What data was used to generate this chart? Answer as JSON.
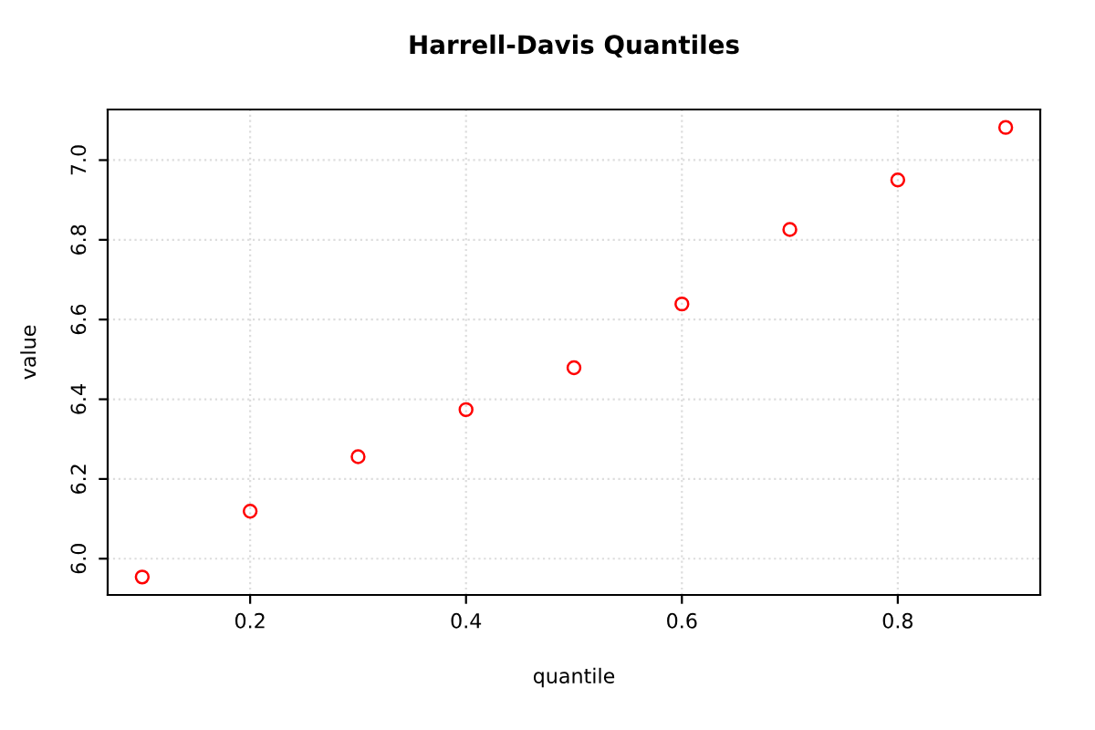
{
  "chart_data": {
    "type": "scatter",
    "title": "Harrell-Davis Quantiles",
    "xlabel": "quantile",
    "ylabel": "value",
    "x": [
      0.1,
      0.2,
      0.3,
      0.4,
      0.5,
      0.6,
      0.7,
      0.8,
      0.9
    ],
    "series": [
      {
        "color": "#ff0000",
        "values": [
          5.954,
          6.119,
          6.256,
          6.374,
          6.479,
          6.639,
          6.826,
          6.95,
          7.082
        ]
      }
    ],
    "xlim": [
      0.068,
      0.932
    ],
    "ylim": [
      5.909,
      7.127
    ],
    "xticks": [
      0.2,
      0.4,
      0.6,
      0.8
    ],
    "yticks": [
      {
        "value": 6,
        "label": "6.0"
      },
      6.2,
      6.4,
      6.6,
      6.8,
      {
        "value": 7,
        "label": "7.0"
      }
    ],
    "grid": true,
    "marker": "circle"
  }
}
